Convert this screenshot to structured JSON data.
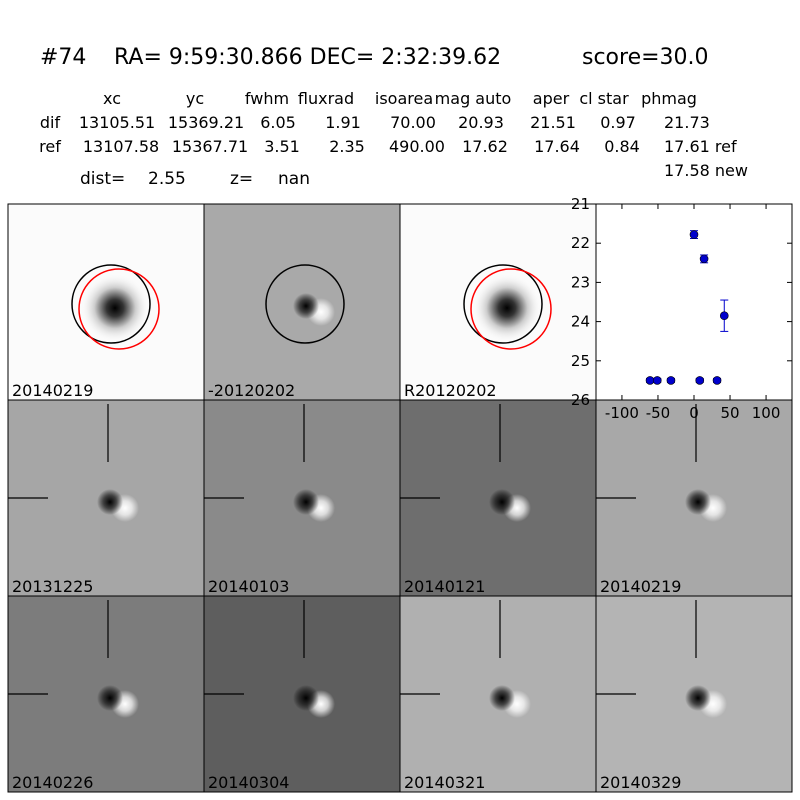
{
  "header": {
    "id": "#74",
    "coords": "RA= 9:59:30.866 DEC= 2:32:39.62",
    "score": "score=30.0"
  },
  "table": {
    "columns": [
      "xc",
      "yc",
      "fwhm",
      "fluxrad",
      "isoarea",
      "mag auto",
      "aper",
      "cl star",
      "phmag"
    ],
    "rows": [
      [
        "dif",
        "13105.51",
        "15369.21",
        "6.05",
        "1.91",
        "70.00",
        "20.93",
        "21.51",
        "0.97",
        "21.73"
      ],
      [
        "ref",
        "13107.58",
        "15367.71",
        "3.51",
        "2.35",
        "490.00",
        "17.62",
        "17.64",
        "0.84",
        "17.61 ref"
      ]
    ],
    "extra": "17.58 new"
  },
  "dist": {
    "label": "dist=",
    "value": "2.55",
    "z_label": "z=",
    "z_value": "nan"
  },
  "panels": [
    {
      "label": "20140219"
    },
    {
      "label": "-20120202"
    },
    {
      "label": "R20120202"
    },
    {
      "label": "20131225"
    },
    {
      "label": "20140103"
    },
    {
      "label": "20140121"
    },
    {
      "label": "20140219",
      "color": "#ff0000"
    },
    {
      "label": "20140226"
    },
    {
      "label": "20140304"
    },
    {
      "label": "20140321"
    },
    {
      "label": "20140329"
    }
  ],
  "chart_data": {
    "type": "scatter",
    "color": "#0000cc",
    "x": [
      -61,
      -51,
      -32,
      8,
      32,
      0,
      14,
      42
    ],
    "values": [
      25.5,
      25.5,
      25.5,
      25.5,
      25.5,
      21.78,
      22.4,
      23.85
    ],
    "errors": [
      0.05,
      0.05,
      0.05,
      0.05,
      0.05,
      0.1,
      0.1,
      0.4
    ],
    "xlim": [
      -136,
      136
    ],
    "ylim": [
      26,
      21
    ],
    "inverted_y": true,
    "xticks": [
      -100,
      -50,
      0,
      50,
      100
    ],
    "yticks": [
      21,
      22,
      23,
      24,
      25,
      26
    ]
  }
}
